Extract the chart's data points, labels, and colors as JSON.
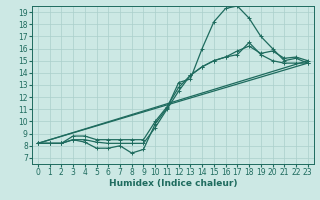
{
  "xlabel": "Humidex (Indice chaleur)",
  "bg_color": "#cce8e4",
  "line_color": "#1e6b5e",
  "grid_color": "#aacfcb",
  "xlim": [
    -0.5,
    23.5
  ],
  "ylim": [
    6.5,
    19.5
  ],
  "xticks": [
    0,
    1,
    2,
    3,
    4,
    5,
    6,
    7,
    8,
    9,
    10,
    11,
    12,
    13,
    14,
    15,
    16,
    17,
    18,
    19,
    20,
    21,
    22,
    23
  ],
  "yticks": [
    7,
    8,
    9,
    10,
    11,
    12,
    13,
    14,
    15,
    16,
    17,
    18,
    19
  ],
  "curve1_x": [
    0,
    1,
    2,
    3,
    4,
    5,
    6,
    7,
    8,
    9,
    10,
    11,
    12,
    13,
    14,
    15,
    16,
    17,
    18,
    19,
    20,
    21,
    22,
    23
  ],
  "curve1_y": [
    8.2,
    8.2,
    8.2,
    8.5,
    8.3,
    7.8,
    7.8,
    8.0,
    7.4,
    7.7,
    9.8,
    11.1,
    13.2,
    13.5,
    16.0,
    18.2,
    19.3,
    19.5,
    18.5,
    17.0,
    16.0,
    15.0,
    15.2,
    14.8
  ],
  "curve2_x": [
    0,
    1,
    2,
    3,
    4,
    5,
    6,
    7,
    8,
    9,
    10,
    11,
    12,
    13,
    14,
    15,
    16,
    17,
    18,
    19,
    20,
    21,
    22,
    23
  ],
  "curve2_y": [
    8.2,
    8.2,
    8.2,
    8.5,
    8.5,
    8.3,
    8.2,
    8.2,
    8.2,
    8.2,
    9.5,
    11.0,
    12.5,
    13.8,
    14.5,
    15.0,
    15.3,
    15.8,
    16.2,
    15.6,
    15.8,
    15.2,
    15.3,
    15.0
  ],
  "curve3_x": [
    0,
    1,
    2,
    3,
    4,
    5,
    6,
    7,
    8,
    9,
    10,
    11,
    12,
    13,
    14,
    15,
    16,
    17,
    18,
    19,
    20,
    21,
    22,
    23
  ],
  "curve3_y": [
    8.2,
    8.2,
    8.2,
    8.8,
    8.8,
    8.5,
    8.5,
    8.5,
    8.5,
    8.5,
    10.0,
    11.2,
    12.8,
    13.8,
    14.5,
    15.0,
    15.3,
    15.5,
    16.5,
    15.5,
    15.0,
    14.8,
    14.8,
    14.8
  ],
  "line_x": [
    0,
    23
  ],
  "line_y": [
    8.2,
    14.8
  ],
  "line2_x": [
    0,
    23
  ],
  "line2_y": [
    8.2,
    15.0
  ],
  "marker": "+",
  "markersize": 3,
  "linewidth": 0.9,
  "tick_fontsize": 5.5,
  "label_fontsize": 6.5
}
